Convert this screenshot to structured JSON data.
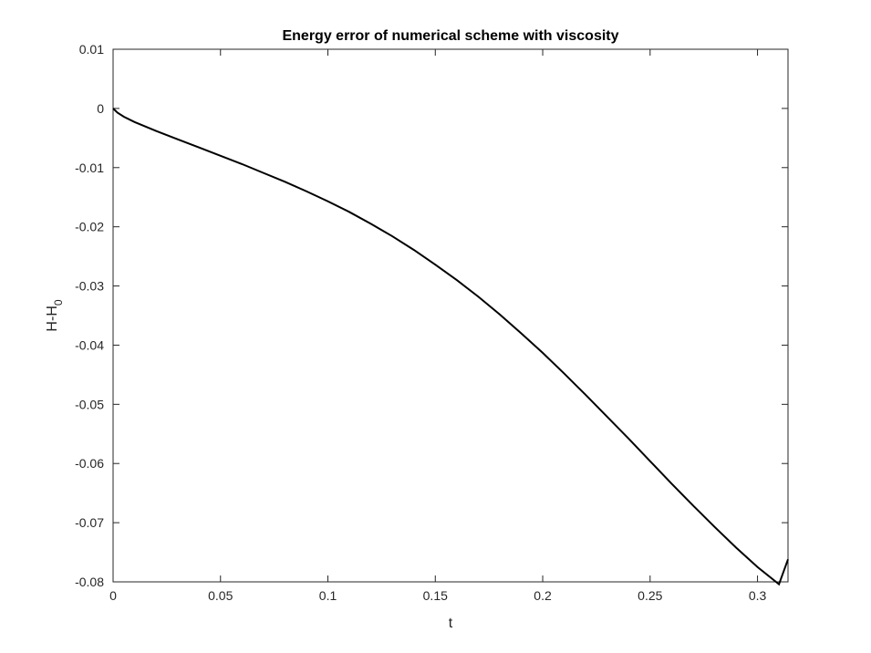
{
  "chart_data": {
    "type": "line",
    "title": "Energy error of numerical scheme with viscosity",
    "xlabel": "t",
    "ylabel": "H-H",
    "ylabel_subscript": "0",
    "xlim": [
      0,
      0.3142
    ],
    "ylim": [
      -0.08,
      0.01
    ],
    "xticks": [
      0,
      0.05,
      0.1,
      0.15,
      0.2,
      0.25,
      0.3
    ],
    "xtick_labels": [
      "0",
      "0.05",
      "0.1",
      "0.15",
      "0.2",
      "0.25",
      "0.3"
    ],
    "yticks": [
      0.01,
      0,
      -0.01,
      -0.02,
      -0.03,
      -0.04,
      -0.05,
      -0.06,
      -0.07,
      -0.08
    ],
    "ytick_labels": [
      "0.01",
      "0",
      "-0.01",
      "-0.02",
      "-0.03",
      "-0.04",
      "-0.05",
      "-0.06",
      "-0.07",
      "-0.08"
    ],
    "grid": false,
    "line_color": "#000000",
    "series": [
      {
        "x": [
          0,
          0.002,
          0.005,
          0.01,
          0.02,
          0.03,
          0.04,
          0.05,
          0.06,
          0.07,
          0.08,
          0.09,
          0.1,
          0.11,
          0.12,
          0.13,
          0.14,
          0.15,
          0.16,
          0.17,
          0.18,
          0.19,
          0.2,
          0.21,
          0.22,
          0.23,
          0.24,
          0.25,
          0.26,
          0.27,
          0.28,
          0.29,
          0.3,
          0.31,
          0.3142
        ],
        "y": [
          0,
          -0.0007,
          -0.0014,
          -0.0023,
          -0.0038,
          -0.0052,
          -0.0066,
          -0.008,
          -0.0094,
          -0.0109,
          -0.0124,
          -0.014,
          -0.0157,
          -0.0175,
          -0.0195,
          -0.0216,
          -0.0239,
          -0.0264,
          -0.029,
          -0.0318,
          -0.0348,
          -0.038,
          -0.0413,
          -0.0448,
          -0.0484,
          -0.0521,
          -0.0558,
          -0.0596,
          -0.0634,
          -0.0671,
          -0.0707,
          -0.0742,
          -0.0775,
          -0.0804,
          -0.0762
        ]
      }
    ]
  }
}
